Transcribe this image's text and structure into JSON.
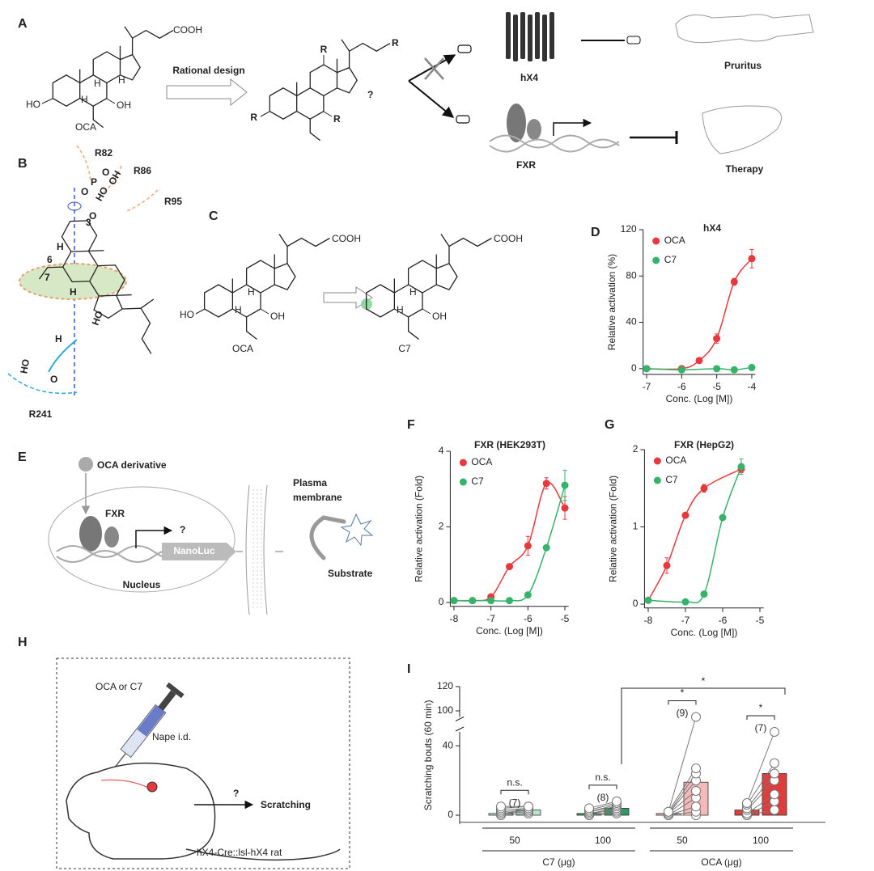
{
  "panel_labels": [
    "A",
    "B",
    "C",
    "D",
    "E",
    "F",
    "G",
    "H",
    "I"
  ],
  "panel_a": {
    "cooh": "COOH",
    "ho": "HO",
    "oh": "OH",
    "h": "H",
    "oca": "OCA",
    "arrow_label": "Rational design",
    "r": "R",
    "question": "?",
    "hx4": "hX4",
    "pruritus": "Pruritus",
    "fxr": "FXR",
    "therapy": "Therapy"
  },
  "panel_b": {
    "residues": [
      "R82",
      "R86",
      "R95",
      "R241"
    ],
    "positions": [
      "3",
      "6",
      "7"
    ],
    "o": "O",
    "p": "P",
    "oh": "OH",
    "ho": "HO",
    "h": "H"
  },
  "panel_c": {
    "cooh": "COOH",
    "ho": "HO",
    "oh": "OH",
    "h": "H",
    "compounds": [
      "OCA",
      "C7"
    ]
  },
  "panel_e": {
    "ligand": "OCA derivative",
    "receptor": "FXR",
    "question": "?",
    "reporter": "NanoLuc",
    "nucleus": "Nucleus",
    "membrane_lines": [
      "Plasma",
      "membrane"
    ],
    "substrate": "Substrate"
  },
  "panel_h": {
    "treatment": "OCA or C7",
    "route": "Nape i.d.",
    "question": "?",
    "outcome": "Scratching",
    "model": "hX4-Cre::lsl-hX4 rat"
  },
  "chart_data": [
    {
      "type": "line",
      "title": "hX4",
      "xlabel": "Conc. (Log [M])",
      "ylabel": "Relative activation (%)",
      "xlim": [
        -7.1,
        -3.9
      ],
      "xticks": [
        -7,
        -6,
        -5,
        -4
      ],
      "ylim": [
        -5,
        120
      ],
      "yticks": [
        0,
        40,
        80,
        120
      ],
      "legend": "upper left",
      "series": [
        {
          "name": "OCA",
          "color": "#e8383d",
          "x": [
            -7,
            -6,
            -5.5,
            -5,
            -4.5,
            -4
          ],
          "values": [
            0,
            0,
            7,
            26,
            75,
            95
          ],
          "errors": [
            0,
            0,
            1,
            4,
            3,
            8
          ]
        },
        {
          "name": "C7",
          "color": "#35b36b",
          "x": [
            -7,
            -6,
            -5,
            -4.5,
            -4
          ],
          "values": [
            0,
            -1,
            0,
            -1,
            1
          ],
          "errors": [
            0,
            0,
            0,
            0,
            0
          ]
        }
      ]
    },
    {
      "type": "line",
      "title": "FXR (HEK293T)",
      "xlabel": "Conc. (Log [M])",
      "ylabel": "Relative activation (Fold)",
      "xlim": [
        -8.1,
        -4.9
      ],
      "xticks": [
        -8,
        -7,
        -6,
        -5
      ],
      "ylim": [
        -0.1,
        4
      ],
      "yticks": [
        0,
        2,
        4
      ],
      "legend": "upper left",
      "series": [
        {
          "name": "OCA",
          "color": "#e8383d",
          "x": [
            -8,
            -7.5,
            -7,
            -6.5,
            -6,
            -5.5,
            -5
          ],
          "values": [
            0.05,
            0.05,
            0.15,
            0.95,
            1.5,
            3.15,
            2.5
          ],
          "errors": [
            0,
            0,
            0,
            0.05,
            0.25,
            0.15,
            0.3
          ]
        },
        {
          "name": "C7",
          "color": "#35b36b",
          "x": [
            -8,
            -7.5,
            -7,
            -6.5,
            -6,
            -5.5,
            -5
          ],
          "values": [
            0.05,
            0.05,
            0.05,
            0.05,
            0.2,
            1.45,
            3.1
          ],
          "errors": [
            0,
            0,
            0,
            0,
            0,
            0.05,
            0.4
          ]
        }
      ]
    },
    {
      "type": "line",
      "title": "FXR (HepG2)",
      "xlabel": "Conc. (Log [M])",
      "ylabel": "Relative activation (Fold)",
      "xlim": [
        -8.1,
        -4.9
      ],
      "xticks": [
        -8,
        -7,
        -6,
        -5
      ],
      "ylim": [
        -0.05,
        2
      ],
      "yticks": [
        0,
        1,
        2
      ],
      "legend": "upper left",
      "series": [
        {
          "name": "OCA",
          "color": "#e8383d",
          "x": [
            -8,
            -7.5,
            -7,
            -6.5,
            -5.5
          ],
          "values": [
            0.05,
            0.5,
            1.15,
            1.5,
            1.75
          ],
          "errors": [
            0,
            0.1,
            0.03,
            0.05,
            0.05
          ]
        },
        {
          "name": "C7",
          "color": "#35b36b",
          "x": [
            -8,
            -7,
            -6.5,
            -6,
            -5.5
          ],
          "values": [
            0.05,
            0.03,
            0.13,
            1.12,
            1.78
          ],
          "errors": [
            0,
            0,
            0,
            0.03,
            0.1
          ]
        }
      ]
    },
    {
      "type": "bar",
      "ylabel": "Scratching bouts (60 min)",
      "ylim": [
        -5,
        120
      ],
      "yticks": [
        0,
        40,
        100,
        120
      ],
      "axis_break": [
        48,
        95
      ],
      "categories": [
        "50",
        "100",
        "50",
        "100"
      ],
      "groups": [
        {
          "label": "C7 (μg)",
          "count": 2
        },
        {
          "label": "OCA (μg)",
          "count": 2
        }
      ],
      "values": [
        [
          1,
          3
        ],
        [
          1,
          4
        ],
        [
          1,
          19
        ],
        [
          3,
          24
        ]
      ],
      "errors": [
        [
          0.5,
          1
        ],
        [
          0.5,
          1
        ],
        [
          0.5,
          9
        ],
        [
          1,
          7
        ]
      ],
      "colors": [
        "#b9e4cf",
        "#2f9a62",
        "#f6b9b9",
        "#e23b3b"
      ],
      "pre": [
        [
          0,
          1,
          1,
          2,
          3,
          4,
          5
        ],
        [
          0,
          0,
          1,
          1,
          2,
          2,
          3,
          4
        ],
        [
          0,
          0,
          0,
          0,
          1,
          1,
          1,
          2,
          2
        ],
        [
          0,
          0,
          1,
          3,
          4,
          6,
          7
        ]
      ],
      "post": [
        [
          1,
          2,
          3,
          3,
          4,
          5,
          5
        ],
        [
          1,
          2,
          3,
          4,
          5,
          6,
          7,
          8
        ],
        [
          0,
          2,
          5,
          10,
          14,
          20,
          24,
          27,
          95
        ],
        [
          3,
          8,
          12,
          20,
          24,
          30,
          48
        ]
      ],
      "n_labels": [
        "(7)",
        "(8)",
        "(9)",
        "(7)"
      ],
      "test_labels": [
        "n.s.",
        "n.s.",
        "*",
        "*"
      ],
      "comparisons": [
        {
          "from": 1,
          "to": 3,
          "label": "*"
        }
      ]
    }
  ]
}
